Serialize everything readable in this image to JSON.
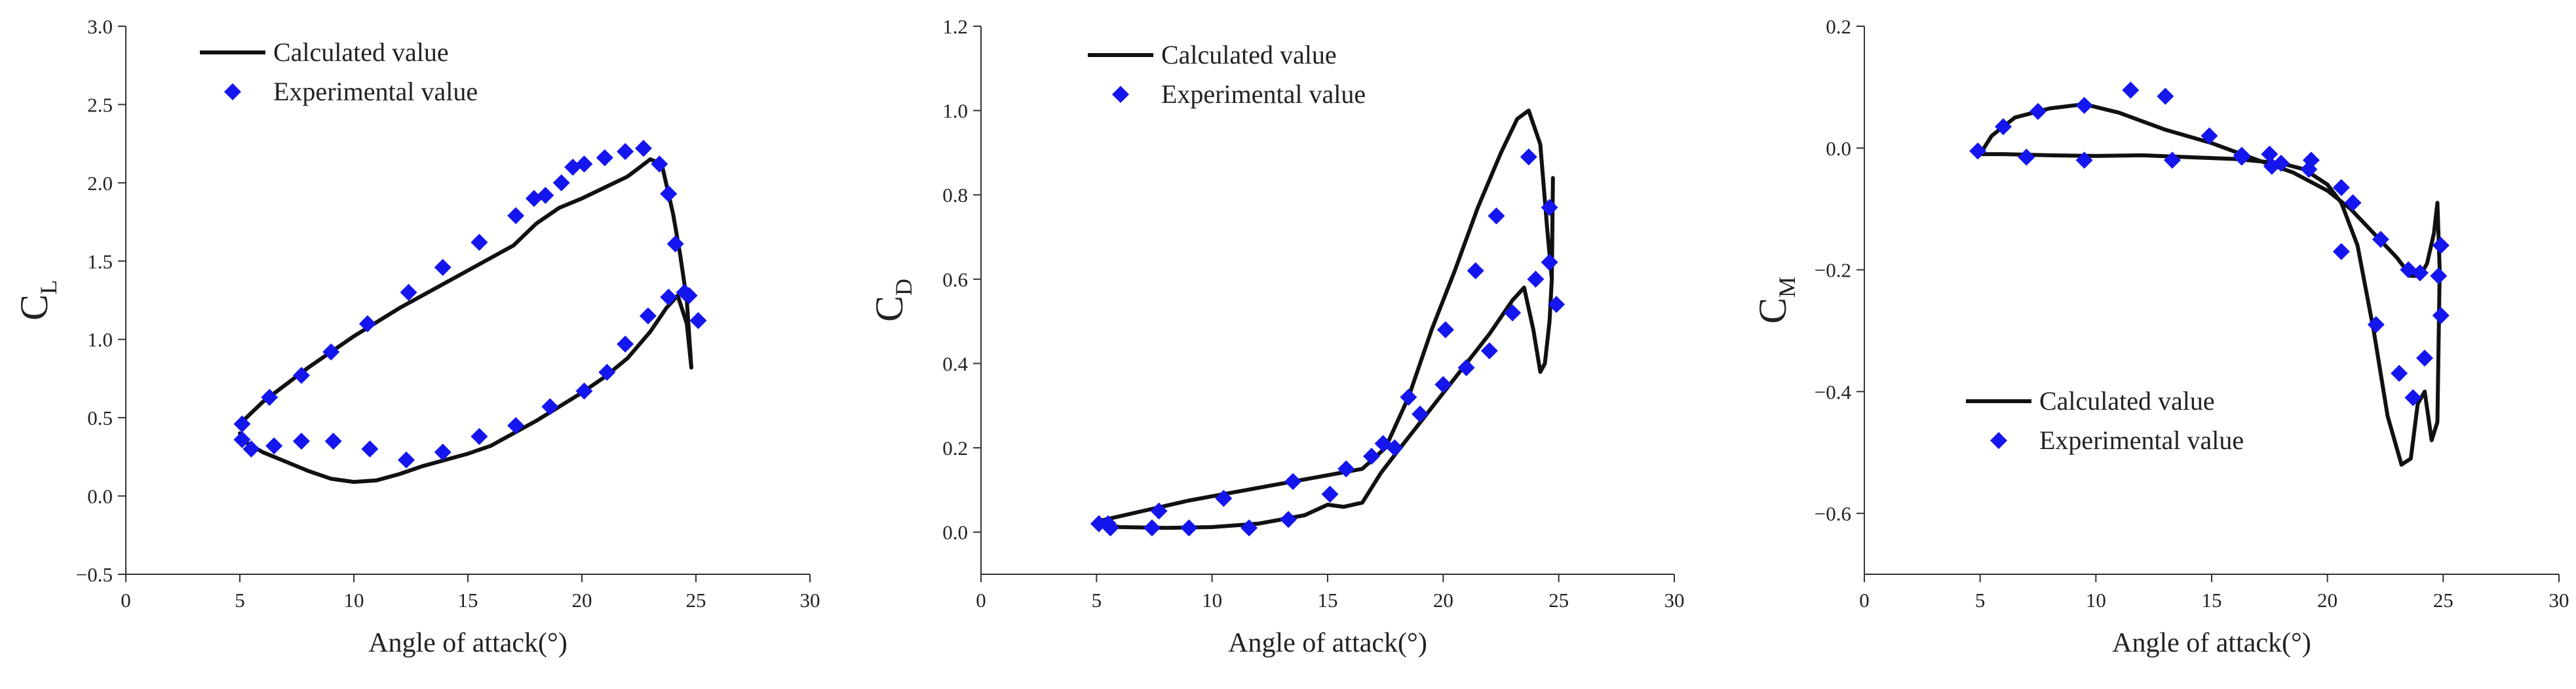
{
  "chart_data": [
    {
      "type": "line",
      "title": "",
      "xlabel": "Angle of attack(°)",
      "ylabel": "C",
      "ylabel_sub": "L",
      "xlim": [
        0,
        30
      ],
      "ylim": [
        -0.5,
        3.0
      ],
      "xticks": [
        0,
        5,
        10,
        15,
        20,
        25,
        30
      ],
      "yticks": [
        -0.5,
        0.0,
        0.5,
        1.0,
        1.5,
        2.0,
        2.5,
        3.0
      ],
      "ytick_labels": [
        "−0.5",
        "0.0",
        "0.5",
        "1.0",
        "1.5",
        "2.0",
        "2.5",
        "3.0"
      ],
      "legend_position": "top-left",
      "series": [
        {
          "name": "Calculated value",
          "style": "line",
          "x": [
            5.0,
            6.0,
            8.0,
            10.0,
            12.0,
            14.0,
            16.0,
            17.0,
            18.0,
            19.0,
            20.0,
            21.0,
            22.0,
            23.0,
            23.5,
            24.0,
            24.3,
            24.6,
            24.8,
            24.6,
            24.2,
            23.7,
            23.0,
            22.0,
            21.0,
            20.0,
            19.0,
            18.0,
            17.0,
            16.0,
            15.0,
            14.0,
            13.0,
            12.0,
            11.0,
            10.0,
            9.0,
            8.0,
            7.0,
            6.0,
            5.3,
            5.0
          ],
          "y": [
            0.46,
            0.6,
            0.82,
            1.02,
            1.2,
            1.36,
            1.52,
            1.6,
            1.74,
            1.84,
            1.9,
            1.97,
            2.04,
            2.15,
            2.12,
            1.8,
            1.55,
            1.25,
            0.82,
            1.1,
            1.28,
            1.2,
            1.05,
            0.88,
            0.76,
            0.66,
            0.57,
            0.48,
            0.4,
            0.32,
            0.27,
            0.23,
            0.19,
            0.14,
            0.1,
            0.09,
            0.11,
            0.16,
            0.22,
            0.28,
            0.34,
            0.4
          ]
        },
        {
          "name": "Experimental value",
          "style": "marker",
          "x": [
            5.1,
            6.3,
            7.7,
            9.0,
            10.6,
            12.4,
            13.9,
            15.5,
            17.1,
            17.9,
            18.4,
            19.1,
            19.6,
            20.1,
            21.0,
            21.9,
            22.7,
            23.4,
            23.8,
            24.1,
            24.5,
            25.1,
            24.7,
            23.8,
            22.9,
            21.9,
            21.1,
            20.1,
            18.6,
            17.1,
            15.5,
            13.9,
            12.3,
            10.7,
            9.1,
            7.7,
            6.5,
            5.5,
            5.1
          ],
          "y": [
            0.46,
            0.63,
            0.77,
            0.92,
            1.1,
            1.3,
            1.46,
            1.62,
            1.79,
            1.9,
            1.92,
            2.0,
            2.1,
            2.12,
            2.16,
            2.2,
            2.22,
            2.12,
            1.93,
            1.61,
            1.3,
            1.12,
            1.28,
            1.27,
            1.15,
            0.97,
            0.79,
            0.67,
            0.57,
            0.45,
            0.38,
            0.28,
            0.23,
            0.3,
            0.35,
            0.35,
            0.32,
            0.3,
            0.36
          ]
        }
      ]
    },
    {
      "type": "line",
      "title": "",
      "xlabel": "Angle of attack(°)",
      "ylabel": "C",
      "ylabel_sub": "D",
      "xlim": [
        0,
        30
      ],
      "ylim": [
        -0.1,
        1.2
      ],
      "xticks": [
        0,
        5,
        10,
        15,
        20,
        25,
        30
      ],
      "yticks": [
        0.0,
        0.2,
        0.4,
        0.6,
        0.8,
        1.0,
        1.2
      ],
      "ytick_labels": [
        "0.0",
        "0.2",
        "0.4",
        "0.6",
        "0.8",
        "1.0",
        "1.2"
      ],
      "legend_position": "top-left",
      "series": [
        {
          "name": "Calculated value",
          "style": "line",
          "x": [
            5.0,
            7.0,
            9.0,
            11.0,
            13.0,
            15.0,
            16.5,
            17.5,
            18.5,
            19.5,
            20.5,
            21.5,
            22.5,
            23.2,
            23.7,
            24.2,
            24.5,
            24.7,
            24.75,
            24.7,
            24.6,
            24.4,
            24.2,
            23.9,
            23.5,
            23.0,
            22.0,
            21.0,
            20.0,
            19.0,
            18.0,
            17.3,
            16.5,
            15.7,
            15.0,
            14.0,
            12.0,
            10.0,
            8.0,
            6.0,
            5.0
          ],
          "y": [
            0.025,
            0.05,
            0.075,
            0.095,
            0.115,
            0.135,
            0.15,
            0.2,
            0.32,
            0.48,
            0.62,
            0.77,
            0.9,
            0.98,
            1.0,
            0.92,
            0.72,
            0.6,
            0.84,
            0.6,
            0.5,
            0.4,
            0.38,
            0.48,
            0.58,
            0.55,
            0.47,
            0.4,
            0.33,
            0.26,
            0.19,
            0.14,
            0.07,
            0.06,
            0.065,
            0.04,
            0.02,
            0.012,
            0.01,
            0.012,
            0.02
          ]
        },
        {
          "name": "Experimental value",
          "style": "marker",
          "x": [
            5.1,
            5.6,
            7.4,
            9.0,
            11.6,
            13.3,
            15.1,
            16.9,
            17.9,
            19.0,
            20.0,
            21.0,
            22.0,
            23.0,
            24.0,
            24.6,
            24.9,
            24.6,
            23.7,
            22.3,
            21.4,
            20.1,
            18.5,
            17.4,
            15.8,
            13.5,
            10.5,
            7.7,
            5.5
          ],
          "y": [
            0.02,
            0.01,
            0.01,
            0.01,
            0.01,
            0.03,
            0.09,
            0.18,
            0.2,
            0.28,
            0.35,
            0.39,
            0.43,
            0.52,
            0.6,
            0.64,
            0.54,
            0.77,
            0.89,
            0.75,
            0.62,
            0.48,
            0.32,
            0.21,
            0.15,
            0.12,
            0.08,
            0.05,
            0.02
          ]
        }
      ]
    },
    {
      "type": "line",
      "title": "",
      "xlabel": "Angle of attack(°)",
      "ylabel": "C",
      "ylabel_sub": "M",
      "xlim": [
        0,
        30
      ],
      "ylim": [
        -0.7,
        0.2
      ],
      "xticks": [
        0,
        5,
        10,
        15,
        20,
        25,
        30
      ],
      "yticks": [
        -0.6,
        -0.4,
        -0.2,
        0.0,
        0.2
      ],
      "ytick_labels": [
        "−0.6",
        "−0.4",
        "−0.2",
        "0.0",
        "0.2"
      ],
      "legend_position": "bottom-left",
      "series": [
        {
          "name": "Calculated value",
          "style": "line",
          "x": [
            5.0,
            5.5,
            6.5,
            8.0,
            9.5,
            11.0,
            13.0,
            15.0,
            17.0,
            18.5,
            20.0,
            21.0,
            22.0,
            23.0,
            23.6,
            24.0,
            24.3,
            24.6,
            24.75,
            24.85,
            24.75,
            24.5,
            24.2,
            23.9,
            23.6,
            23.2,
            22.6,
            22.0,
            21.3,
            20.6,
            20.0,
            19.0,
            18.0,
            16.0,
            14.0,
            12.0,
            10.0,
            8.0,
            6.0,
            5.0
          ],
          "y": [
            -0.01,
            0.02,
            0.05,
            0.065,
            0.072,
            0.058,
            0.03,
            0.008,
            -0.02,
            -0.04,
            -0.07,
            -0.1,
            -0.14,
            -0.18,
            -0.21,
            -0.21,
            -0.19,
            -0.14,
            -0.09,
            -0.2,
            -0.45,
            -0.48,
            -0.4,
            -0.42,
            -0.51,
            -0.52,
            -0.44,
            -0.3,
            -0.16,
            -0.09,
            -0.06,
            -0.035,
            -0.025,
            -0.018,
            -0.015,
            -0.012,
            -0.013,
            -0.012,
            -0.01,
            -0.01
          ]
        },
        {
          "name": "Experimental value",
          "style": "marker",
          "x": [
            4.9,
            6.0,
            7.5,
            9.5,
            11.5,
            13.0,
            14.9,
            16.3,
            17.5,
            18.0,
            19.3,
            20.6,
            21.1,
            22.3,
            23.5,
            24.0,
            24.9,
            24.8,
            24.9,
            24.2,
            23.7,
            23.1,
            22.1,
            20.6,
            19.2,
            17.6,
            16.3,
            13.3,
            9.5,
            7.0
          ],
          "y": [
            -0.005,
            0.035,
            0.06,
            0.07,
            0.095,
            0.085,
            0.02,
            -0.012,
            -0.01,
            -0.025,
            -0.02,
            -0.065,
            -0.09,
            -0.15,
            -0.2,
            -0.205,
            -0.16,
            -0.21,
            -0.275,
            -0.345,
            -0.41,
            -0.37,
            -0.29,
            -0.17,
            -0.035,
            -0.03,
            -0.015,
            -0.02,
            -0.02,
            -0.015
          ]
        }
      ]
    }
  ]
}
